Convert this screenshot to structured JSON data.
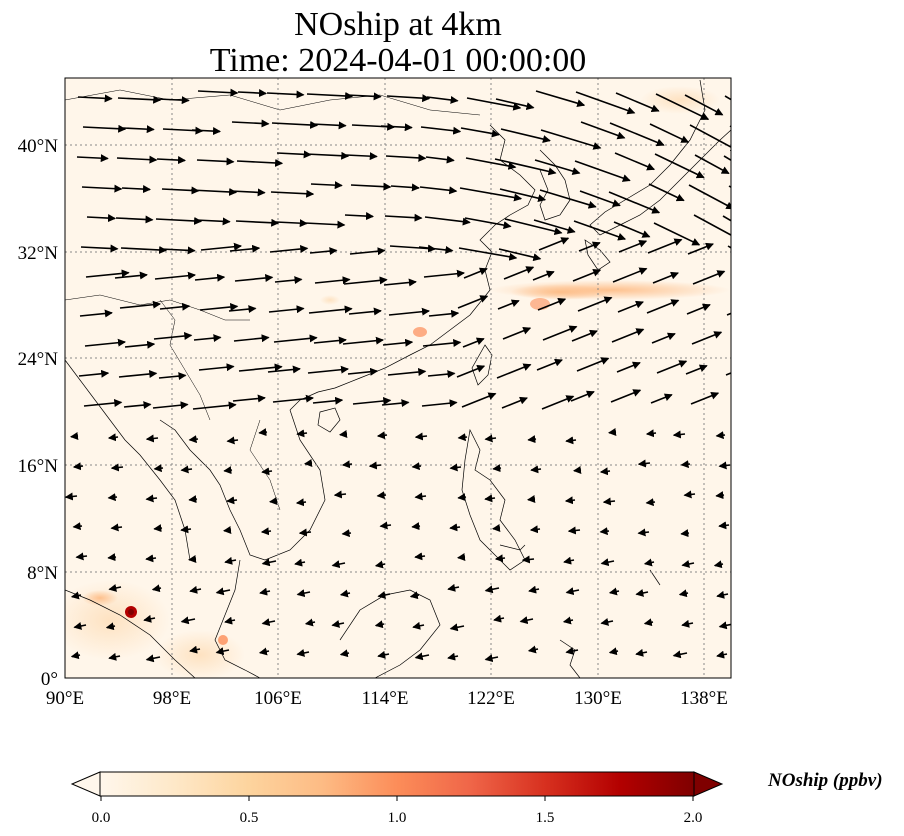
{
  "title": {
    "line1": "NOship at 4km",
    "line2": "Time: 2024-04-01 00:00:00"
  },
  "axes": {
    "x_ticks": [
      "90°E",
      "98°E",
      "106°E",
      "114°E",
      "122°E",
      "130°E",
      "138°E"
    ],
    "y_ticks": [
      "0°",
      "8°N",
      "16°N",
      "24°N",
      "32°N",
      "40°N"
    ],
    "lon_range": [
      90,
      140
    ],
    "lat_range": [
      0,
      45
    ]
  },
  "colorbar": {
    "label": "NOship (ppbv)",
    "ticks": [
      "0.0",
      "0.5",
      "1.0",
      "1.5",
      "2.0"
    ],
    "range": [
      0,
      2.0
    ],
    "extend": "both",
    "cmap": "OrRd",
    "colors": [
      "#fff7ec",
      "#fee8c8",
      "#fdd49e",
      "#fdbb84",
      "#fc8d59",
      "#ef6548",
      "#d7301f",
      "#b30000",
      "#7f0000"
    ]
  },
  "map": {
    "background": "#fff6ea",
    "gridlines": "dotted",
    "coastline_color": "#000000",
    "vector_color": "#000000"
  }
}
